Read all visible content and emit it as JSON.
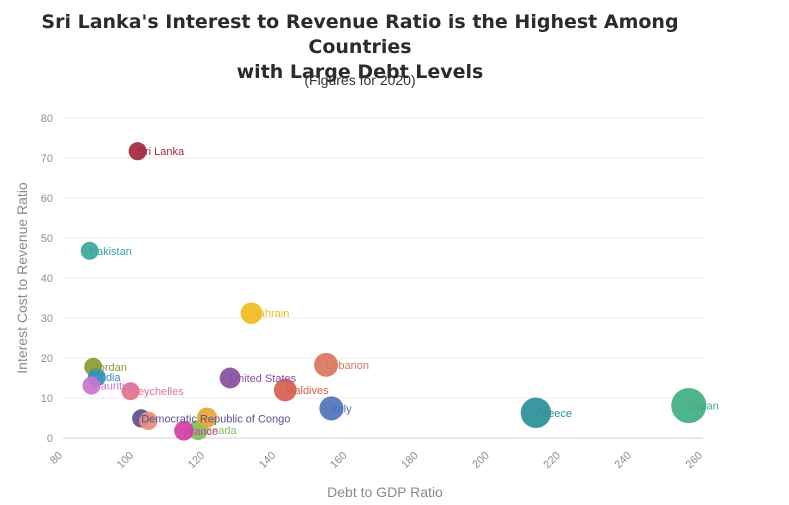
{
  "chart_data": {
    "type": "scatter",
    "title_line1": "Sri Lanka's Interest to Revenue Ratio is the Highest Among Countries",
    "title_line2": "with Large Debt Levels",
    "subtitle": "(Figures for 2020)",
    "xlabel": "Debt to GDP Ratio",
    "ylabel": "Interest Cost to Revenue Ratio",
    "xlim": [
      80,
      260
    ],
    "ylim": [
      0,
      80
    ],
    "xticks": [
      "80",
      "100",
      "120",
      "140",
      "160",
      "180",
      "200",
      "220",
      "240",
      "260"
    ],
    "yticks": [
      "0",
      "10",
      "20",
      "30",
      "40",
      "50",
      "60",
      "70",
      "80"
    ],
    "grid": true,
    "points": [
      {
        "name": "Sri Lanka",
        "x": 101,
        "y": 71.7,
        "color": "#a3283f"
      },
      {
        "name": "Pakistan",
        "x": 87.5,
        "y": 46.8,
        "color": "#3aa79c"
      },
      {
        "name": "Bahrain",
        "x": 133,
        "y": 31.2,
        "color": "#f0bb22"
      },
      {
        "name": "Lebanon",
        "x": 154,
        "y": 18.3,
        "color": "#d9765c"
      },
      {
        "name": "Jordan",
        "x": 88.5,
        "y": 17.8,
        "color": "#8b9a35"
      },
      {
        "name": "India",
        "x": 89.5,
        "y": 15.2,
        "color": "#2f8fbf"
      },
      {
        "name": "United States",
        "x": 127,
        "y": 15.0,
        "color": "#8a4ea0"
      },
      {
        "name": "Mauritius",
        "x": 88,
        "y": 13.1,
        "color": "#c676cc"
      },
      {
        "name": "Maldives",
        "x": 142.5,
        "y": 12.0,
        "color": "#d55f4d"
      },
      {
        "name": "Seychelles",
        "x": 99,
        "y": 11.7,
        "color": "#e2728c"
      },
      {
        "name": "Italy",
        "x": 155.5,
        "y": 7.4,
        "color": "#4d73b8"
      },
      {
        "name": "Japan",
        "x": 256,
        "y": 8.1,
        "color": "#3fae82"
      },
      {
        "name": "Greece",
        "x": 213,
        "y": 6.3,
        "color": "#2a8f99"
      },
      {
        "name": "Canada",
        "x": 118,
        "y": 2.0,
        "color": "#7cc25a"
      },
      {
        "name": "France",
        "x": 114,
        "y": 1.8,
        "color": "#d63da4"
      },
      {
        "name": "Democratic Republic of Congo",
        "x": 102,
        "y": 4.9,
        "color": "#5a4d8f"
      },
      {
        "name": "",
        "x": 120.5,
        "y": 5.1,
        "color": "#e8a636"
      },
      {
        "name": "",
        "x": 104,
        "y": 4.3,
        "color": "#e88e7a"
      }
    ]
  }
}
